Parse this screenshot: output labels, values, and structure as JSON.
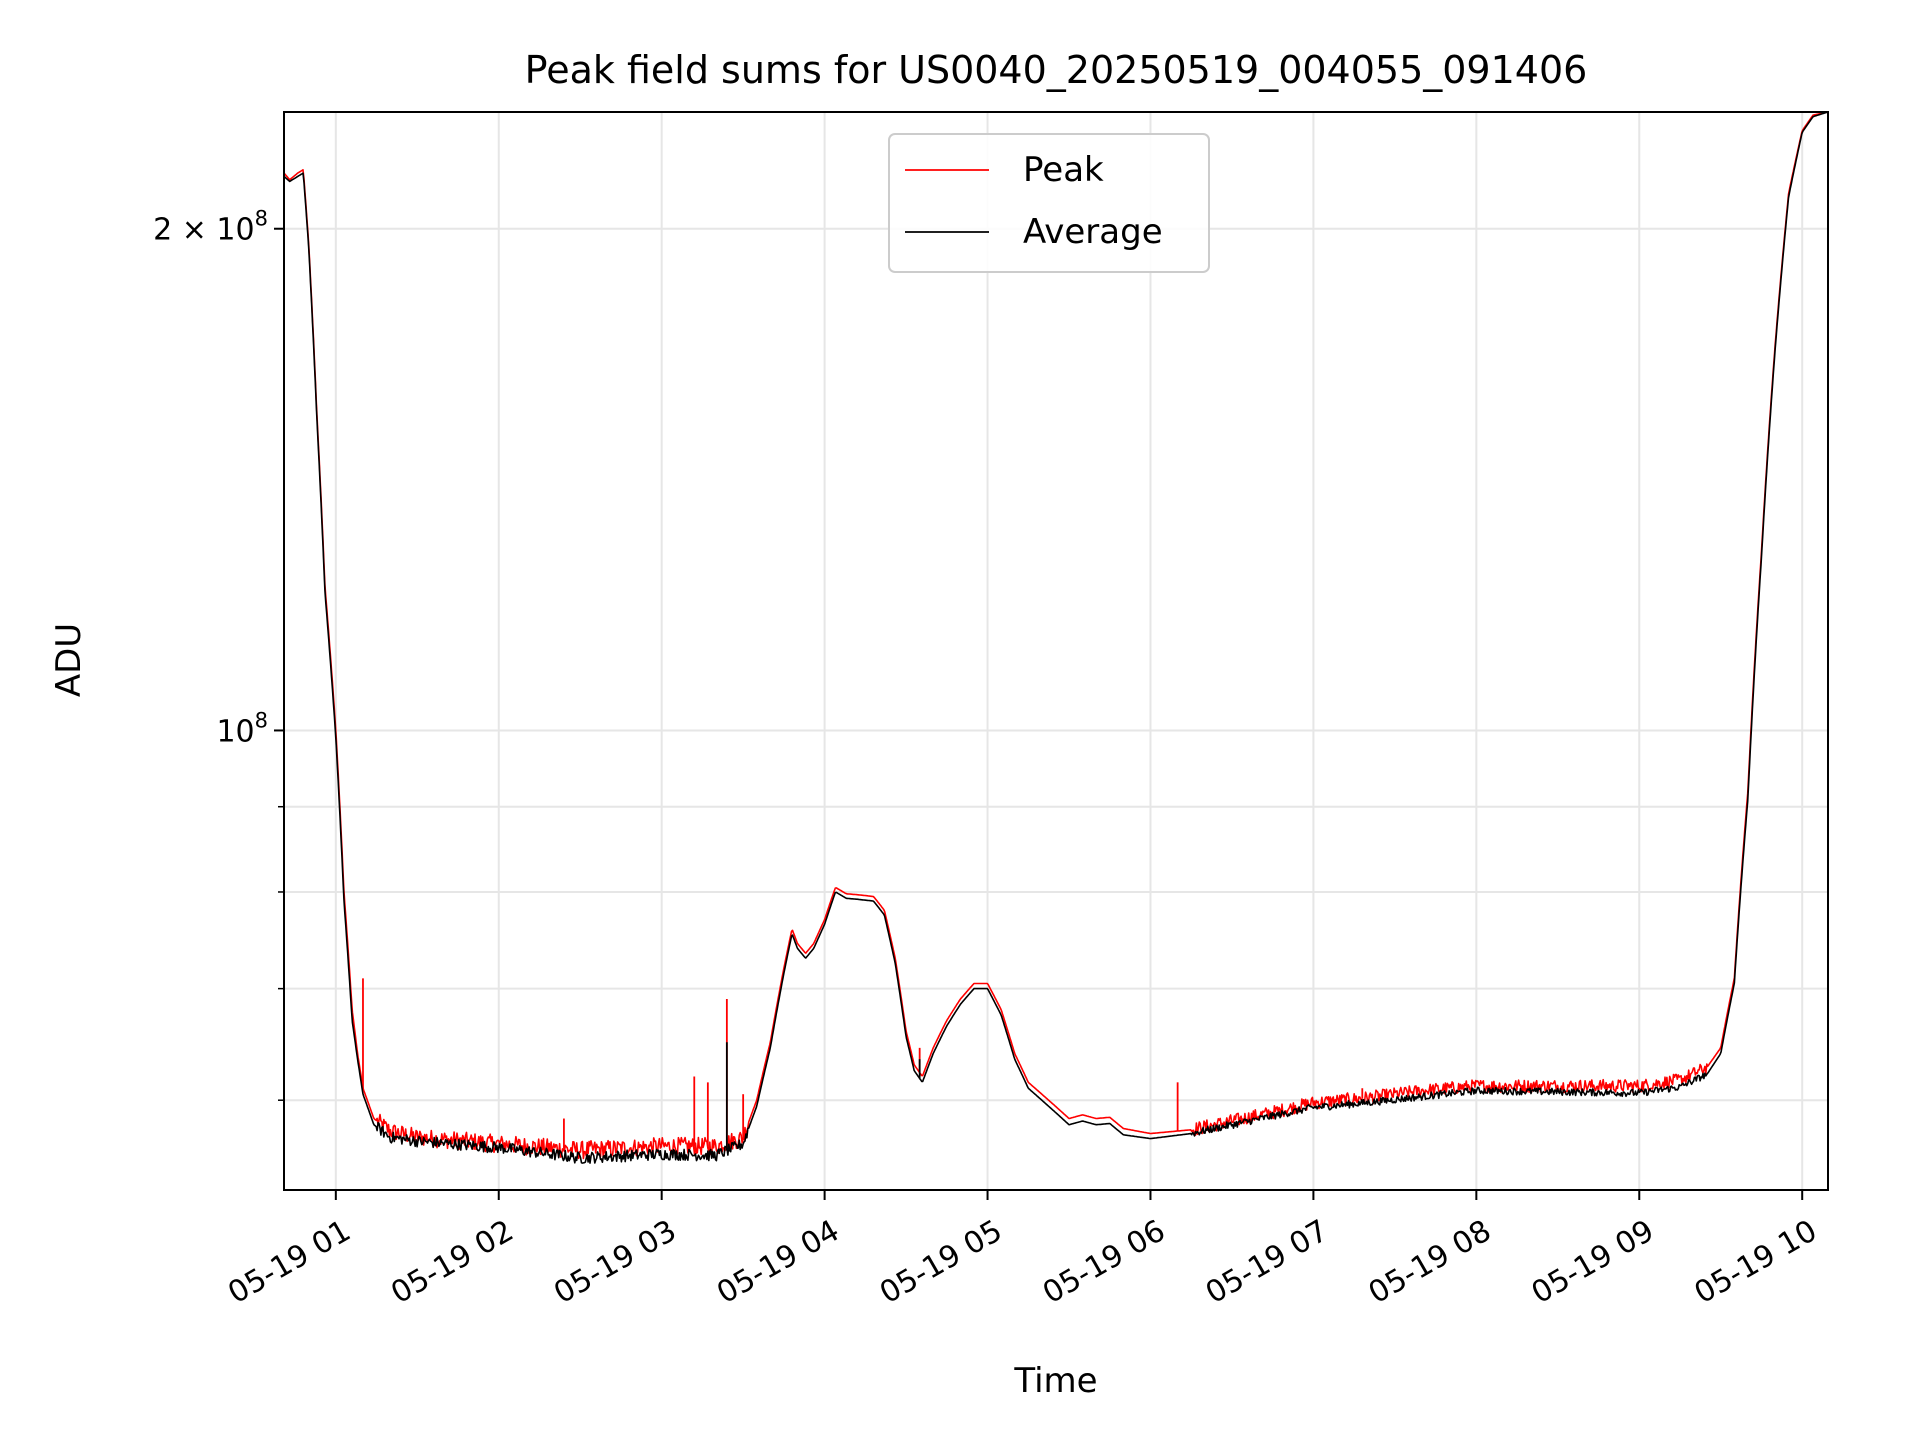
{
  "chart_data": {
    "type": "line",
    "title": "Peak field sums for US0040_20250519_004055_091406",
    "xlabel": "Time",
    "ylabel": "ADU",
    "yscale": "log",
    "ylim": [
      53000000,
      235000000
    ],
    "xlim": [
      "05-19 00:40:55",
      "05-19 10:09:30"
    ],
    "grid": true,
    "legend_position": "upper center",
    "x_ticks": [
      {
        "t": "05-19 01:00",
        "label": "05-19 01"
      },
      {
        "t": "05-19 02:00",
        "label": "05-19 02"
      },
      {
        "t": "05-19 03:00",
        "label": "05-19 03"
      },
      {
        "t": "05-19 04:00",
        "label": "05-19 04"
      },
      {
        "t": "05-19 05:00",
        "label": "05-19 05"
      },
      {
        "t": "05-19 06:00",
        "label": "05-19 06"
      },
      {
        "t": "05-19 07:00",
        "label": "05-19 07"
      },
      {
        "t": "05-19 08:00",
        "label": "05-19 08"
      },
      {
        "t": "05-19 09:00",
        "label": "05-19 09"
      },
      {
        "t": "05-19 10:00",
        "label": "05-19 10"
      }
    ],
    "y_major_ticks": [
      {
        "value": 100000000,
        "base": "10",
        "exp": "8"
      },
      {
        "value": 200000000,
        "base": "2 × 10",
        "exp": "8"
      }
    ],
    "y_minor_ticks": [
      60000000,
      70000000,
      80000000,
      90000000
    ],
    "series": [
      {
        "name": "Peak",
        "color": "#ff0000",
        "points": [
          [
            "05-19 00:40:55",
            216000000
          ],
          [
            "05-19 00:43:00",
            214000000
          ],
          [
            "05-19 00:46:00",
            216000000
          ],
          [
            "05-19 00:48:00",
            217000000
          ],
          [
            "05-19 00:50:00",
            196000000
          ],
          [
            "05-19 00:53:00",
            155000000
          ],
          [
            "05-19 00:56:00",
            122000000
          ],
          [
            "05-19 01:00:00",
            100000000
          ],
          [
            "05-19 01:03:00",
            80000000
          ],
          [
            "05-19 01:06:00",
            68000000
          ],
          [
            "05-19 01:08:00",
            64000000
          ],
          [
            "05-19 01:10:00",
            61000000
          ],
          [
            "05-19 01:14:00",
            58500000
          ],
          [
            "05-19 01:20:00",
            57500000
          ],
          [
            "05-19 01:30:00",
            57000000
          ],
          [
            "05-19 02:00:00",
            56500000
          ],
          [
            "05-19 02:30:00",
            56000000
          ],
          [
            "05-19 03:00:00",
            56300000
          ],
          [
            "05-19 03:20:00",
            56300000
          ],
          [
            "05-19 03:30:00",
            57000000
          ],
          [
            "05-19 03:35:00",
            60000000
          ],
          [
            "05-19 03:40:00",
            65000000
          ],
          [
            "05-19 03:45:00",
            72000000
          ],
          [
            "05-19 03:48:00",
            76000000
          ],
          [
            "05-19 03:50:00",
            74500000
          ],
          [
            "05-19 03:53:00",
            73500000
          ],
          [
            "05-19 03:56:00",
            74500000
          ],
          [
            "05-19 04:00:00",
            77000000
          ],
          [
            "05-19 04:04:00",
            80500000
          ],
          [
            "05-19 04:08:00",
            79800000
          ],
          [
            "05-19 04:12:00",
            79700000
          ],
          [
            "05-19 04:18:00",
            79500000
          ],
          [
            "05-19 04:22:00",
            78000000
          ],
          [
            "05-19 04:26:00",
            73000000
          ],
          [
            "05-19 04:30:00",
            66000000
          ],
          [
            "05-19 04:33:00",
            63000000
          ],
          [
            "05-19 04:36:00",
            62000000
          ],
          [
            "05-19 04:40:00",
            64500000
          ],
          [
            "05-19 04:45:00",
            67000000
          ],
          [
            "05-19 04:50:00",
            69000000
          ],
          [
            "05-19 04:55:00",
            70500000
          ],
          [
            "05-19 05:00:00",
            70500000
          ],
          [
            "05-19 05:05:00",
            68000000
          ],
          [
            "05-19 05:10:00",
            64000000
          ],
          [
            "05-19 05:15:00",
            61500000
          ],
          [
            "05-19 05:20:00",
            60500000
          ],
          [
            "05-19 05:25:00",
            59500000
          ],
          [
            "05-19 05:30:00",
            58500000
          ],
          [
            "05-19 05:35:00",
            58800000
          ],
          [
            "05-19 05:40:00",
            58500000
          ],
          [
            "05-19 05:45:00",
            58600000
          ],
          [
            "05-19 05:50:00",
            57700000
          ],
          [
            "05-19 06:00:00",
            57300000
          ],
          [
            "05-19 06:15:00",
            57600000
          ],
          [
            "05-19 06:30:00",
            58300000
          ],
          [
            "05-19 06:45:00",
            59000000
          ],
          [
            "05-19 07:00:00",
            59800000
          ],
          [
            "05-19 07:20:00",
            60200000
          ],
          [
            "05-19 07:40:00",
            60800000
          ],
          [
            "05-19 08:00:00",
            61200000
          ],
          [
            "05-19 08:30:00",
            61200000
          ],
          [
            "05-19 09:00:00",
            61200000
          ],
          [
            "05-19 09:15:00",
            61700000
          ],
          [
            "05-19 09:25:00",
            62800000
          ],
          [
            "05-19 09:30:00",
            64500000
          ],
          [
            "05-19 09:35:00",
            71000000
          ],
          [
            "05-19 09:40:00",
            92000000
          ],
          [
            "05-19 09:45:00",
            128000000
          ],
          [
            "05-19 09:50:00",
            170000000
          ],
          [
            "05-19 09:55:00",
            210000000
          ],
          [
            "05-19 10:00:00",
            229000000
          ],
          [
            "05-19 10:04:00",
            234000000
          ],
          [
            "05-19 10:09:30",
            235000000
          ]
        ],
        "spikes": [
          [
            "05-19 01:10:00",
            71000000
          ],
          [
            "05-19 03:12:00",
            62000000
          ],
          [
            "05-19 03:17:00",
            61500000
          ],
          [
            "05-19 03:24:00",
            69000000
          ],
          [
            "05-19 03:30:00",
            60500000
          ],
          [
            "05-19 04:35:00",
            64500000
          ],
          [
            "05-19 06:10:00",
            61500000
          ],
          [
            "05-19 07:18:00",
            61000000
          ],
          [
            "05-19 02:24:00",
            58500000
          ]
        ],
        "noise": [
          {
            "from": "05-19 01:15:00",
            "to": "05-19 03:32:00",
            "amp": 1400000
          },
          {
            "from": "05-19 06:15:00",
            "to": "05-19 09:25:00",
            "amp": 1100000
          }
        ]
      },
      {
        "name": "Average",
        "color": "#000000",
        "points": [
          [
            "05-19 00:40:55",
            215000000
          ],
          [
            "05-19 00:43:00",
            213500000
          ],
          [
            "05-19 00:46:00",
            215000000
          ],
          [
            "05-19 00:48:00",
            216000000
          ],
          [
            "05-19 00:50:00",
            195000000
          ],
          [
            "05-19 00:53:00",
            154000000
          ],
          [
            "05-19 00:56:00",
            121000000
          ],
          [
            "05-19 01:00:00",
            99000000
          ],
          [
            "05-19 01:03:00",
            79000000
          ],
          [
            "05-19 01:06:00",
            67000000
          ],
          [
            "05-19 01:08:00",
            63500000
          ],
          [
            "05-19 01:10:00",
            60500000
          ],
          [
            "05-19 01:14:00",
            58000000
          ],
          [
            "05-19 01:20:00",
            57000000
          ],
          [
            "05-19 01:30:00",
            56700000
          ],
          [
            "05-19 02:00:00",
            56200000
          ],
          [
            "05-19 02:30:00",
            55400000
          ],
          [
            "05-19 03:00:00",
            55700000
          ],
          [
            "05-19 03:20:00",
            55600000
          ],
          [
            "05-19 03:30:00",
            56500000
          ],
          [
            "05-19 03:35:00",
            59500000
          ],
          [
            "05-19 03:40:00",
            64500000
          ],
          [
            "05-19 03:45:00",
            71500000
          ],
          [
            "05-19 03:48:00",
            75500000
          ],
          [
            "05-19 03:50:00",
            74000000
          ],
          [
            "05-19 03:53:00",
            73000000
          ],
          [
            "05-19 03:56:00",
            74000000
          ],
          [
            "05-19 04:00:00",
            76500000
          ],
          [
            "05-19 04:04:00",
            80000000
          ],
          [
            "05-19 04:08:00",
            79300000
          ],
          [
            "05-19 04:12:00",
            79200000
          ],
          [
            "05-19 04:18:00",
            79000000
          ],
          [
            "05-19 04:22:00",
            77500000
          ],
          [
            "05-19 04:26:00",
            72500000
          ],
          [
            "05-19 04:30:00",
            65500000
          ],
          [
            "05-19 04:33:00",
            62500000
          ],
          [
            "05-19 04:36:00",
            61500000
          ],
          [
            "05-19 04:40:00",
            64000000
          ],
          [
            "05-19 04:45:00",
            66500000
          ],
          [
            "05-19 04:50:00",
            68500000
          ],
          [
            "05-19 04:55:00",
            70000000
          ],
          [
            "05-19 05:00:00",
            70000000
          ],
          [
            "05-19 05:05:00",
            67500000
          ],
          [
            "05-19 05:10:00",
            63500000
          ],
          [
            "05-19 05:15:00",
            61000000
          ],
          [
            "05-19 05:20:00",
            60000000
          ],
          [
            "05-19 05:25:00",
            59000000
          ],
          [
            "05-19 05:30:00",
            58000000
          ],
          [
            "05-19 05:35:00",
            58300000
          ],
          [
            "05-19 05:40:00",
            58000000
          ],
          [
            "05-19 05:45:00",
            58100000
          ],
          [
            "05-19 05:50:00",
            57200000
          ],
          [
            "05-19 06:00:00",
            56900000
          ],
          [
            "05-19 06:15:00",
            57300000
          ],
          [
            "05-19 06:30:00",
            58000000
          ],
          [
            "05-19 06:45:00",
            58700000
          ],
          [
            "05-19 07:00:00",
            59400000
          ],
          [
            "05-19 07:20:00",
            59800000
          ],
          [
            "05-19 07:40:00",
            60300000
          ],
          [
            "05-19 08:00:00",
            60800000
          ],
          [
            "05-19 08:30:00",
            60700000
          ],
          [
            "05-19 09:00:00",
            60600000
          ],
          [
            "05-19 09:15:00",
            61100000
          ],
          [
            "05-19 09:25:00",
            62200000
          ],
          [
            "05-19 09:30:00",
            64000000
          ],
          [
            "05-19 09:35:00",
            70500000
          ],
          [
            "05-19 09:40:00",
            91000000
          ],
          [
            "05-19 09:45:00",
            127000000
          ],
          [
            "05-19 09:50:00",
            169000000
          ],
          [
            "05-19 09:55:00",
            209000000
          ],
          [
            "05-19 10:00:00",
            228500000
          ],
          [
            "05-19 10:04:00",
            233500000
          ],
          [
            "05-19 10:09:30",
            235000000
          ]
        ],
        "spikes": [
          [
            "05-19 03:24:00",
            65000000
          ],
          [
            "05-19 04:35:00",
            63500000
          ]
        ],
        "noise": [
          {
            "from": "05-19 01:15:00",
            "to": "05-19 03:32:00",
            "amp": 900000
          },
          {
            "from": "05-19 06:15:00",
            "to": "05-19 09:25:00",
            "amp": 600000
          }
        ]
      }
    ]
  }
}
